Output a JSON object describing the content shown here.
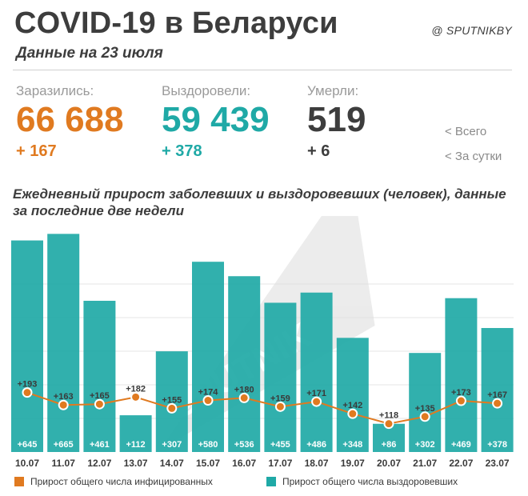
{
  "header": {
    "title": "COVID-19 в Беларуси",
    "subtitle": "Данные на 23 июля",
    "brand": "@ SPUTNIKBY"
  },
  "stats": {
    "infected": {
      "label": "Заразились:",
      "value": "66 688",
      "delta": "+ 167",
      "color": "#e07a20"
    },
    "recovered": {
      "label": "Выздоровели:",
      "value": "59 439",
      "delta": "+ 378",
      "color": "#1fa9a6"
    },
    "deaths": {
      "label": "Умерли:",
      "value": "519",
      "delta": "+ 6",
      "color": "#3d3d3d"
    },
    "hint_total": "<  Всего",
    "hint_daily": "<  За сутки"
  },
  "watermark": "SPUTNIK",
  "chart_data": {
    "type": "bar",
    "title": "Ежедневный прирост заболевших и выздоровевших (человек), данные за последние две недели",
    "categories": [
      "10.07",
      "11.07",
      "12.07",
      "13.07",
      "14.07",
      "15.07",
      "16.07",
      "17.07",
      "18.07",
      "19.07",
      "20.07",
      "21.07",
      "22.07",
      "23.07"
    ],
    "series": [
      {
        "name": "Прирост общего числа выздоровевших",
        "type": "bar",
        "color": "#1fa9a6",
        "values": [
          645,
          665,
          461,
          112,
          307,
          580,
          536,
          455,
          486,
          348,
          86,
          302,
          469,
          378
        ],
        "labels": [
          "+645",
          "+665",
          "+461",
          "+112",
          "+307",
          "+580",
          "+536",
          "+455",
          "+486",
          "+348",
          "+86",
          "+302",
          "+469",
          "+378"
        ]
      },
      {
        "name": "Прирост общего числа инфицированных",
        "type": "line",
        "color": "#e07a20",
        "values": [
          193,
          163,
          165,
          182,
          155,
          174,
          180,
          159,
          171,
          142,
          118,
          135,
          173,
          167
        ],
        "labels": [
          "+193",
          "+163",
          "+165",
          "+182",
          "+155",
          "+174",
          "+180",
          "+159",
          "+171",
          "+142",
          "+118",
          "+135",
          "+173",
          "+167"
        ]
      }
    ],
    "ylim": [
      0,
      700
    ],
    "grid": true
  },
  "legend": {
    "infected": "Прирост общего числа инфицированных",
    "recovered": "Прирост общего числа выздоровевших"
  }
}
